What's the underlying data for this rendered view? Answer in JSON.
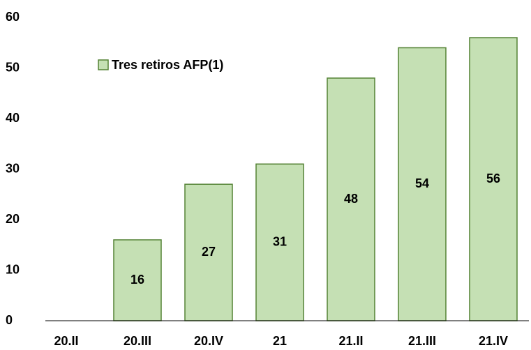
{
  "chart_data": {
    "type": "bar",
    "categories": [
      "20.II",
      "20.III",
      "20.IV",
      "21",
      "21.II",
      "21.III",
      "21.IV"
    ],
    "series": [
      {
        "name": "Tres retiros AFP(1)",
        "color": "#c5e0b4",
        "edge_color": "#548235",
        "values": [
          null,
          16,
          27,
          31,
          48,
          54,
          56
        ]
      }
    ],
    "ylim": [
      0,
      60
    ],
    "yticks": [
      0,
      10,
      20,
      30,
      40,
      50,
      60
    ],
    "grid": false,
    "legend": "upper left"
  }
}
